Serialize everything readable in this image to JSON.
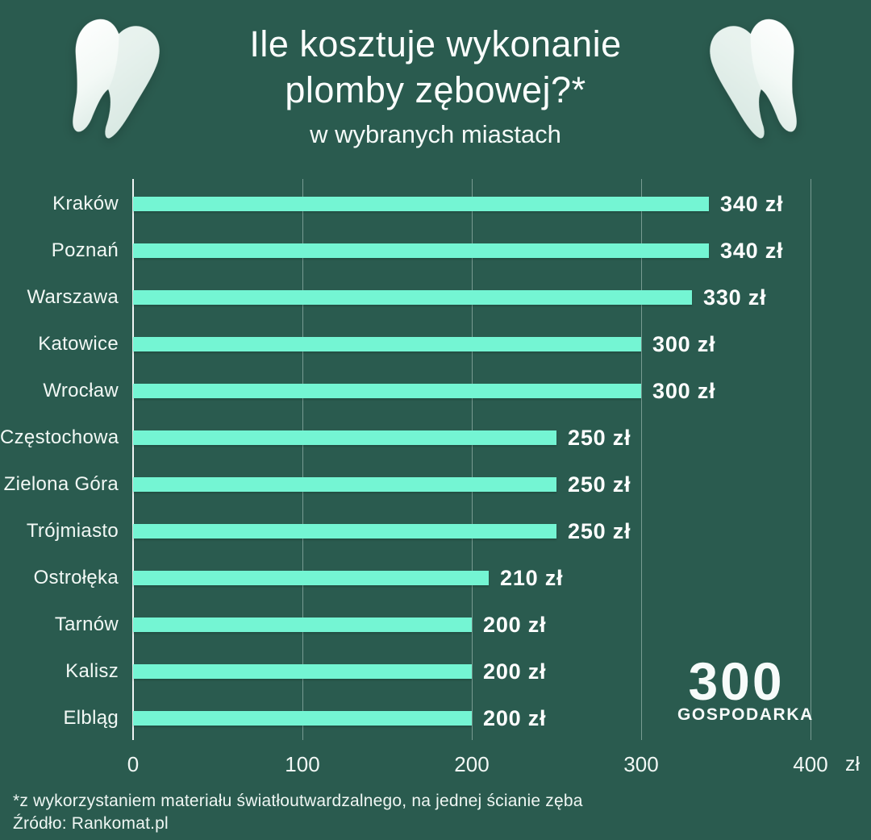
{
  "title": {
    "line1": "Ile kosztuje wykonanie",
    "line2": "plomby zębowej?*",
    "subtitle": "w wybranych miastach"
  },
  "chart_data": {
    "type": "bar",
    "orientation": "horizontal",
    "title": "Ile kosztuje wykonanie plomby zębowej? w wybranych miastach",
    "categories": [
      "Kraków",
      "Poznań",
      "Warszawa",
      "Katowice",
      "Wrocław",
      "Częstochowa",
      "Zielona Góra",
      "Trójmiasto",
      "Ostrołęka",
      "Tarnów",
      "Kalisz",
      "Elbląg"
    ],
    "values": [
      340,
      340,
      330,
      300,
      300,
      250,
      250,
      250,
      210,
      200,
      200,
      200
    ],
    "value_labels": [
      "340 zł",
      "340 zł",
      "330 zł",
      "300 zł",
      "300 zł",
      "250 zł",
      "250 zł",
      "250 zł",
      "210 zł",
      "200 zł",
      "200 zł",
      "200 zł"
    ],
    "x_ticks": [
      0,
      100,
      200,
      300,
      400
    ],
    "x_unit": "zł",
    "xlim": [
      0,
      400
    ],
    "grid": true,
    "legend": false,
    "bar_color": "#74F5D3",
    "background_color": "#2A5B4F",
    "text_color": "#FAFDFC"
  },
  "footer": {
    "note": "*z wykorzystaniem materiału światłoutwardzalnego, na jednej ścianie zęba",
    "source": "Źródło: Rankomat.pl"
  },
  "logo": {
    "number": "300",
    "name": "GOSPODARKA"
  }
}
